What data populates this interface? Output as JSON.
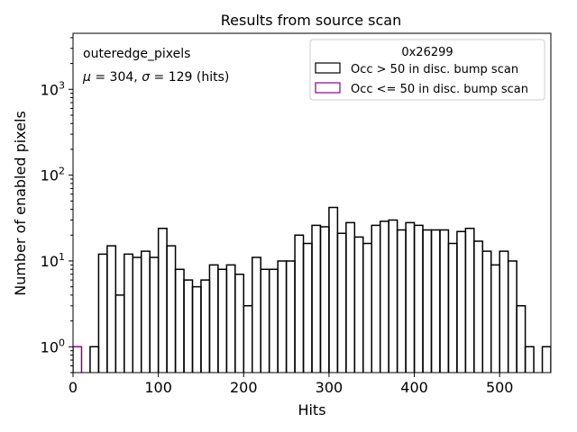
{
  "chart_data": {
    "type": "histogram",
    "title": "Results from source scan",
    "xlabel": "Hits",
    "ylabel": "Number of enabled pixels",
    "xlim": [
      0,
      560
    ],
    "ylog": true,
    "ylim": [
      0.5,
      4500
    ],
    "bin_width": 10,
    "x_ticks": [
      0,
      100,
      200,
      300,
      400,
      500
    ],
    "x_tick_labels": [
      "0",
      "100",
      "200",
      "300",
      "400",
      "500"
    ],
    "y_ticks": [
      1,
      10,
      100,
      1000
    ],
    "y_tick_labels": [
      {
        "base": "10",
        "exp": "0"
      },
      {
        "base": "10",
        "exp": "1"
      },
      {
        "base": "10",
        "exp": "2"
      },
      {
        "base": "10",
        "exp": "3"
      }
    ],
    "annotation": {
      "name": "outeredge_pixels",
      "stats": {
        "mu_symbol": "μ",
        "mu": "= 304,",
        "sigma_symbol": "σ",
        "sigma": "= 129 (hits)"
      }
    },
    "legend": {
      "title": "0x26299",
      "placement": "top-right",
      "entries": [
        {
          "label": "Occ > 50 in disc. bump scan",
          "color": "#000000"
        },
        {
          "label": "Occ <= 50 in disc. bump scan",
          "color": "#8b008b"
        }
      ]
    },
    "series": [
      {
        "name": "Occ > 50 in disc. bump scan",
        "color": "#000000",
        "bins": [
          [
            20,
            1
          ],
          [
            30,
            12
          ],
          [
            40,
            15
          ],
          [
            50,
            4
          ],
          [
            60,
            12
          ],
          [
            70,
            11
          ],
          [
            80,
            13
          ],
          [
            90,
            11
          ],
          [
            100,
            24
          ],
          [
            110,
            15
          ],
          [
            120,
            8
          ],
          [
            130,
            6
          ],
          [
            140,
            5
          ],
          [
            150,
            6
          ],
          [
            160,
            9
          ],
          [
            170,
            8
          ],
          [
            180,
            9
          ],
          [
            190,
            7
          ],
          [
            200,
            3
          ],
          [
            210,
            11
          ],
          [
            220,
            8
          ],
          [
            230,
            8
          ],
          [
            240,
            10
          ],
          [
            250,
            10
          ],
          [
            260,
            20
          ],
          [
            270,
            16
          ],
          [
            280,
            26
          ],
          [
            290,
            25
          ],
          [
            300,
            42
          ],
          [
            310,
            21
          ],
          [
            320,
            28
          ],
          [
            330,
            19
          ],
          [
            340,
            16
          ],
          [
            350,
            26
          ],
          [
            360,
            29
          ],
          [
            370,
            30
          ],
          [
            380,
            23
          ],
          [
            390,
            28
          ],
          [
            400,
            26
          ],
          [
            410,
            23
          ],
          [
            420,
            23
          ],
          [
            430,
            23
          ],
          [
            440,
            16
          ],
          [
            450,
            22
          ],
          [
            460,
            24
          ],
          [
            470,
            17
          ],
          [
            480,
            13
          ],
          [
            490,
            9
          ],
          [
            500,
            13
          ],
          [
            510,
            10
          ],
          [
            520,
            3
          ],
          [
            530,
            1
          ],
          [
            540,
            0
          ],
          [
            550,
            1
          ]
        ]
      },
      {
        "name": "Occ <= 50 in disc. bump scan",
        "color": "#8b008b",
        "bins": [
          [
            0,
            1
          ]
        ]
      }
    ]
  }
}
